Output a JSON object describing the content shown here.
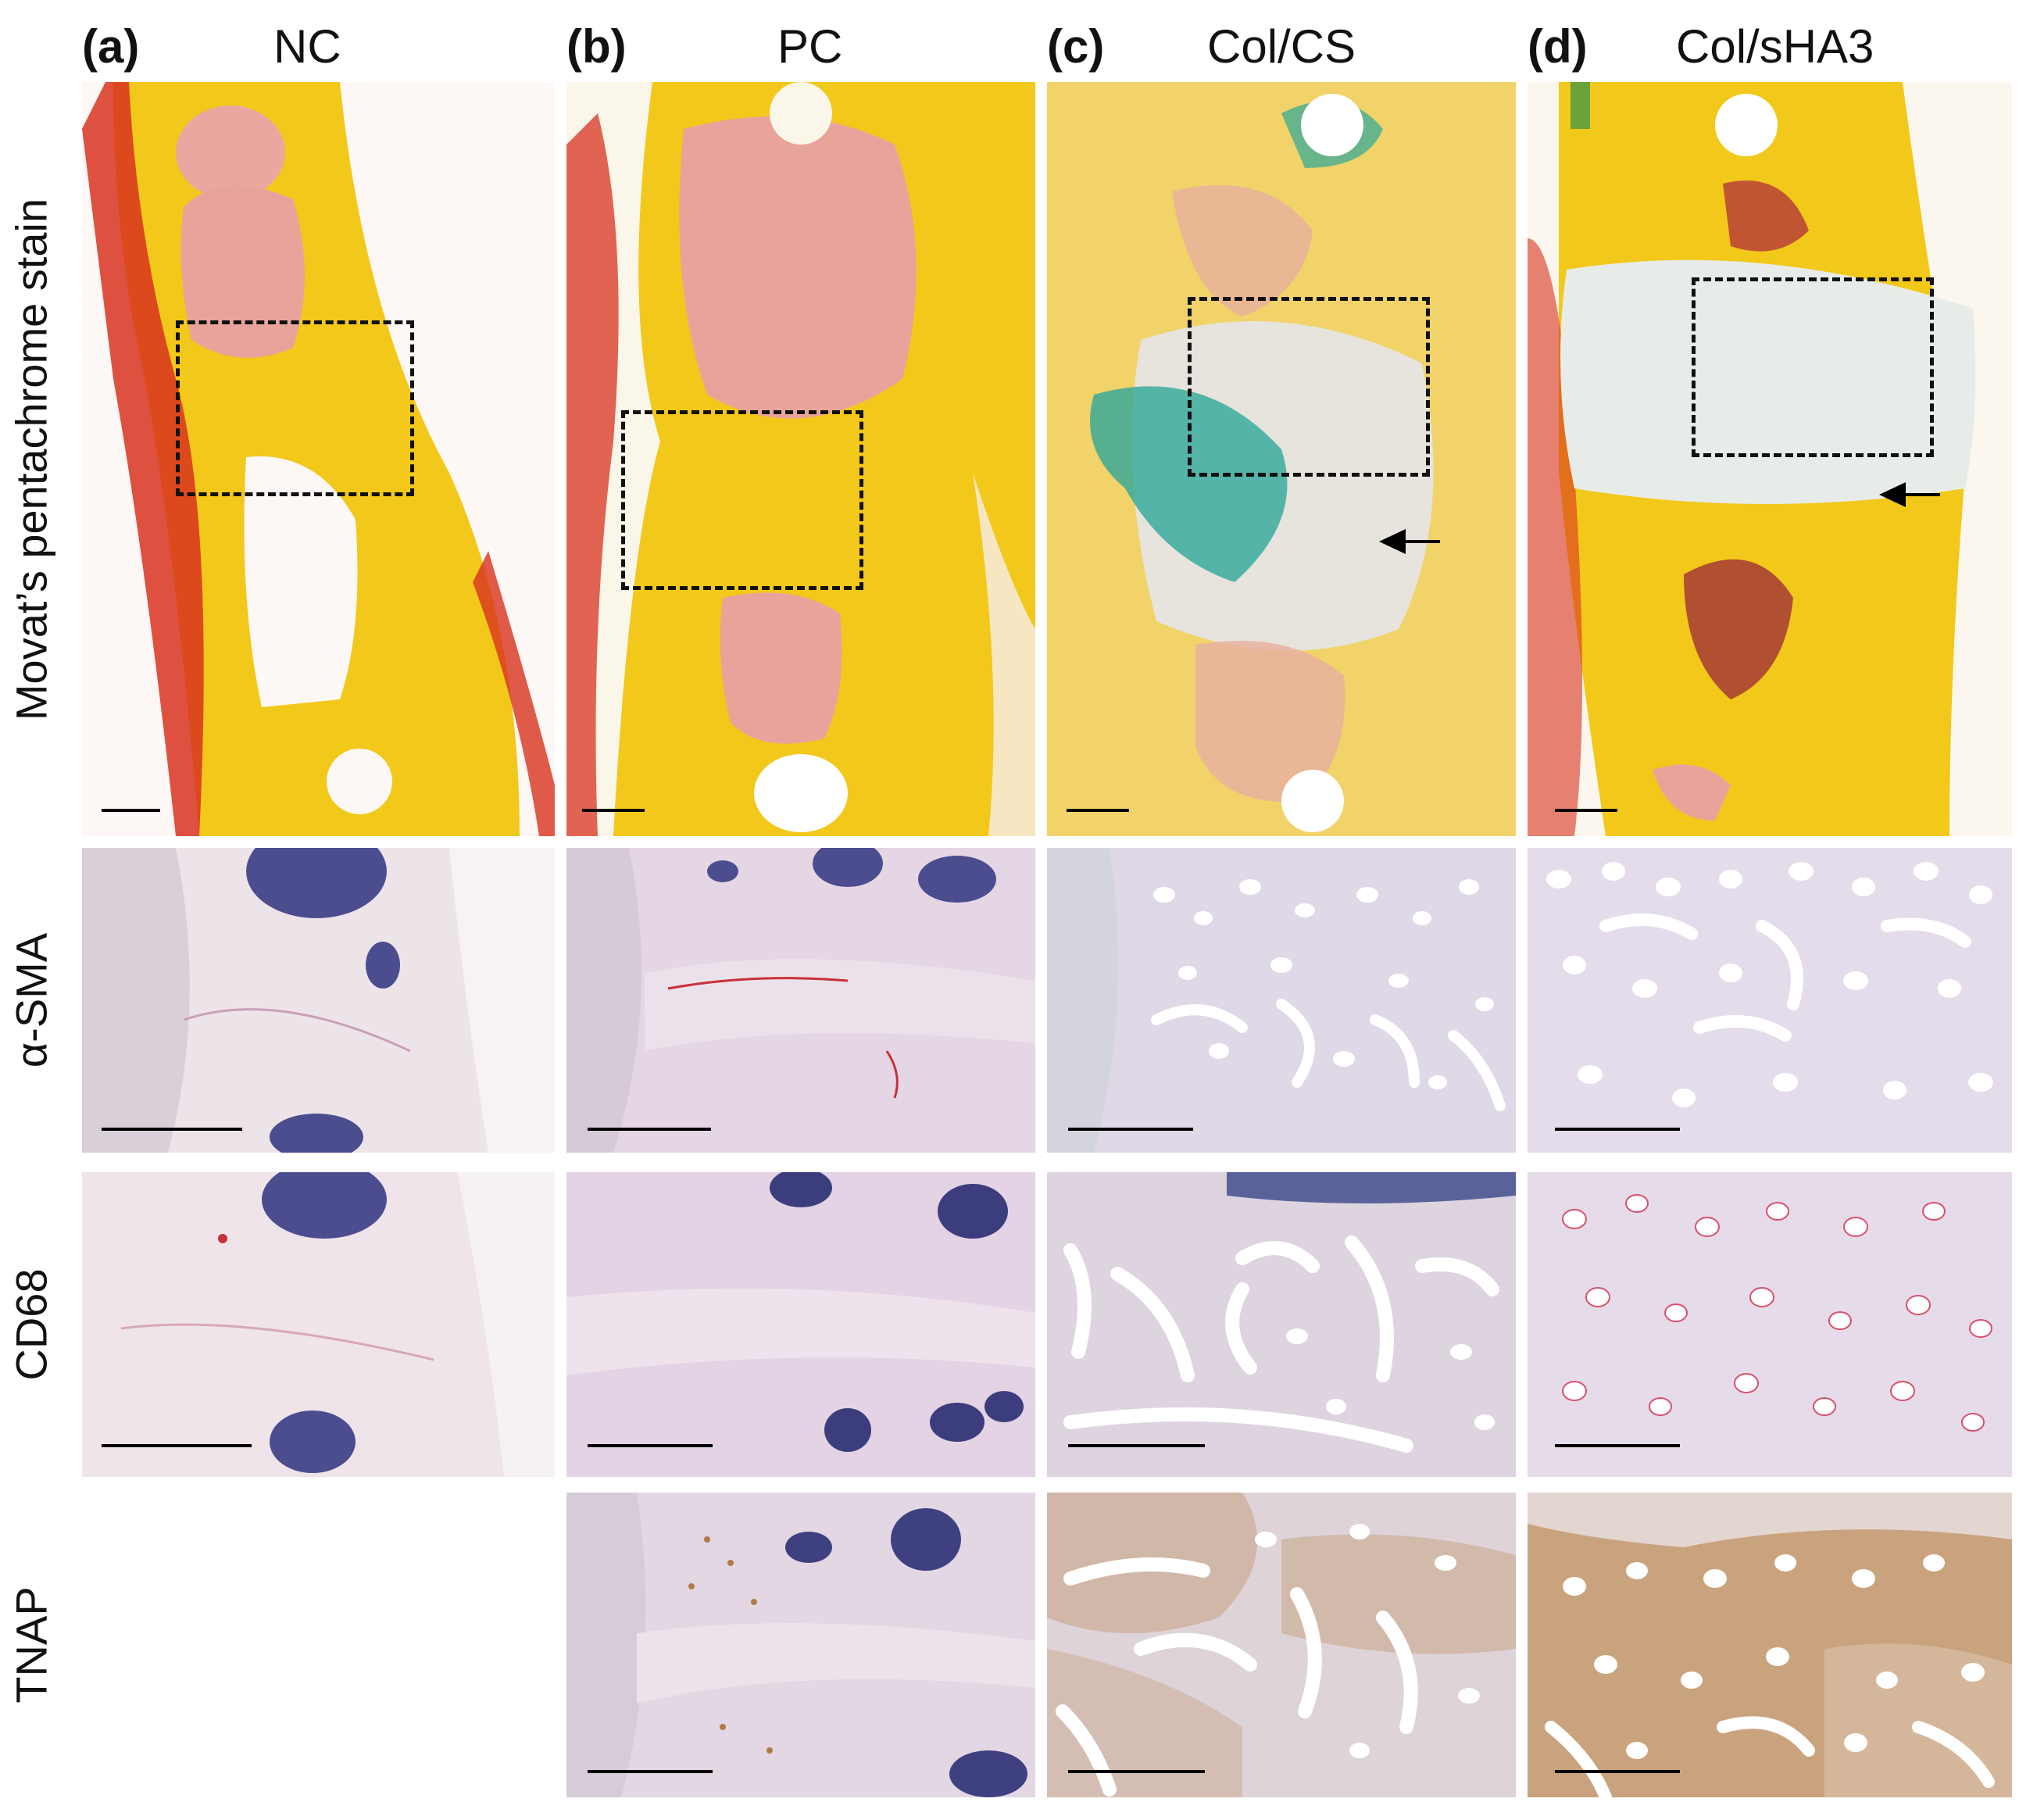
{
  "columns": [
    {
      "letter": "(a)",
      "title": "NC"
    },
    {
      "letter": "(b)",
      "title": "PC"
    },
    {
      "letter": "(c)",
      "title": "Col/CS"
    },
    {
      "letter": "(d)",
      "title": "Col/sHA3"
    }
  ],
  "rows": [
    {
      "label": "Movat’s pentachrome stain"
    },
    {
      "label": "α-SMA"
    },
    {
      "label": "CD68"
    },
    {
      "label": "TNAP"
    }
  ],
  "colors": {
    "pentachrome_bone": "#f2c81a",
    "pentachrome_marrow": "#e8a49a",
    "pentachrome_muscle": "#d8321e",
    "alcian_cartilage": "#2fa89a",
    "he_background": "#e2d3e3",
    "hematoxylin_marrow": "#4c4d8f",
    "tnap_brown": "#b07a45"
  }
}
